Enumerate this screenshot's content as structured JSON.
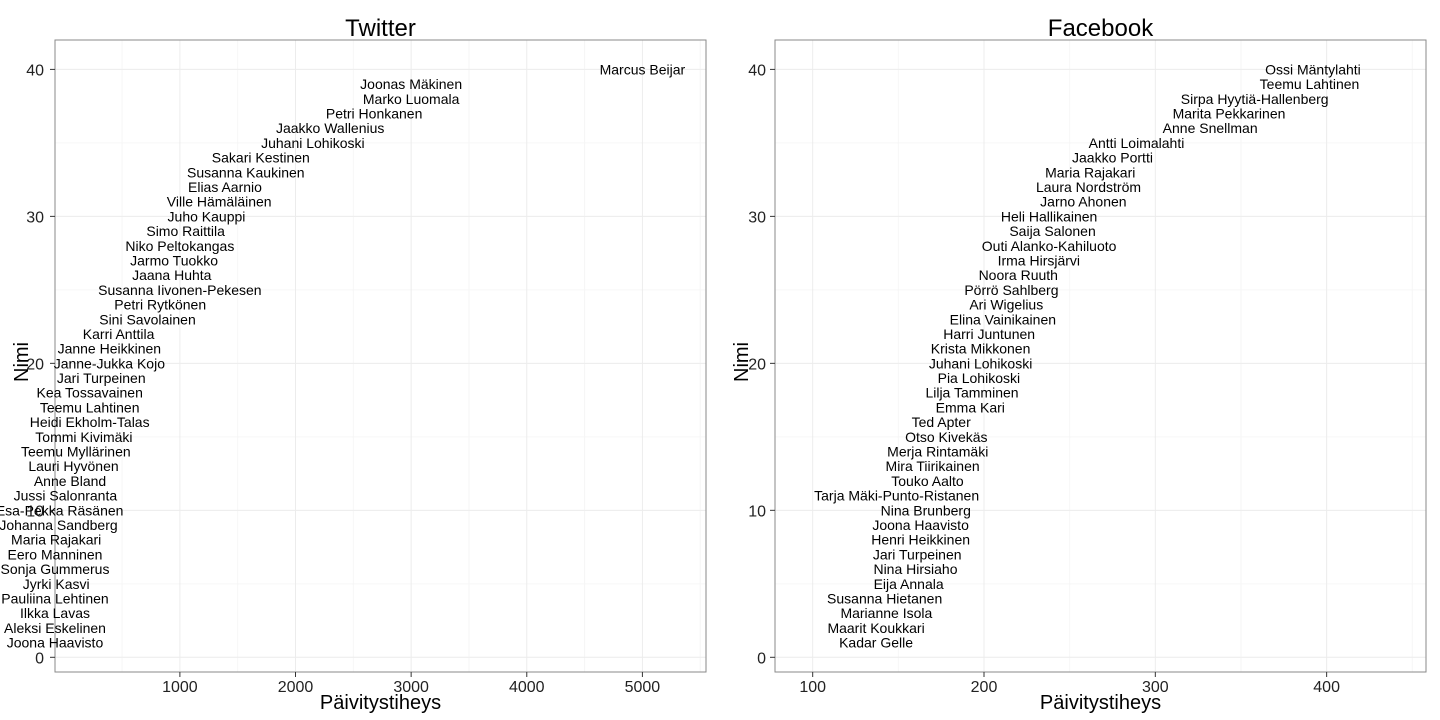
{
  "chart_data": [
    {
      "type": "scatter",
      "title": "Twitter",
      "xlabel": "Päivitystiheys",
      "ylabel": "Nimi",
      "xlim": [
        -80,
        5550
      ],
      "ylim": [
        -1,
        42
      ],
      "xticks": [
        1000,
        2000,
        3000,
        4000,
        5000
      ],
      "yticks": [
        0,
        10,
        20,
        30,
        40
      ],
      "grid": true,
      "legend": "none",
      "points": [
        {
          "x": 5000,
          "y": 40,
          "label": "Marcus Beijar"
        },
        {
          "x": 3000,
          "y": 39,
          "label": "Joonas Mäkinen"
        },
        {
          "x": 3000,
          "y": 38,
          "label": "Marko Luomala"
        },
        {
          "x": 2680,
          "y": 37,
          "label": "Petri Honkanen"
        },
        {
          "x": 2300,
          "y": 36,
          "label": "Jaakko Wallenius"
        },
        {
          "x": 2150,
          "y": 35,
          "label": "Juhani Lohikoski"
        },
        {
          "x": 1700,
          "y": 34,
          "label": "Sakari Kestinen"
        },
        {
          "x": 1570,
          "y": 33,
          "label": "Susanna Kaukinen"
        },
        {
          "x": 1390,
          "y": 32,
          "label": "Elias Aarnio"
        },
        {
          "x": 1340,
          "y": 31,
          "label": "Ville Hämäläinen"
        },
        {
          "x": 1230,
          "y": 30,
          "label": "Juho Kauppi"
        },
        {
          "x": 1050,
          "y": 29,
          "label": "Simo Raittila"
        },
        {
          "x": 1000,
          "y": 28,
          "label": "Niko Peltokangas"
        },
        {
          "x": 950,
          "y": 27,
          "label": "Jarmo Tuokko"
        },
        {
          "x": 930,
          "y": 26,
          "label": "Jaana Huhta"
        },
        {
          "x": 1000,
          "y": 25,
          "label": "Susanna Iivonen-Pekesen"
        },
        {
          "x": 830,
          "y": 24,
          "label": "Petri Rytkönen"
        },
        {
          "x": 720,
          "y": 23,
          "label": "Sini Savolainen"
        },
        {
          "x": 470,
          "y": 22,
          "label": "Karri Anttila"
        },
        {
          "x": 390,
          "y": 21,
          "label": "Janne Heikkinen"
        },
        {
          "x": 390,
          "y": 20,
          "label": "Janne-Jukka Kojo"
        },
        {
          "x": 320,
          "y": 19,
          "label": "Jari Turpeinen"
        },
        {
          "x": 220,
          "y": 18,
          "label": "Kea Tossavainen"
        },
        {
          "x": 220,
          "y": 17,
          "label": "Teemu Lahtinen"
        },
        {
          "x": 220,
          "y": 16,
          "label": "Heidi Ekholm-Talas"
        },
        {
          "x": 170,
          "y": 15,
          "label": "Tommi Kivimäki"
        },
        {
          "x": 100,
          "y": 14,
          "label": "Teemu Myllärinen"
        },
        {
          "x": 80,
          "y": 13,
          "label": "Lauri Hyvönen"
        },
        {
          "x": 50,
          "y": 12,
          "label": "Anne Bland"
        },
        {
          "x": 10,
          "y": 11,
          "label": "Jussi Salonranta"
        },
        {
          "x": -40,
          "y": 10,
          "label": "Esa-Pekka Räsänen"
        },
        {
          "x": -50,
          "y": 9,
          "label": "Johanna Sandberg"
        },
        {
          "x": -70,
          "y": 8,
          "label": "Maria Rajakari"
        },
        {
          "x": -80,
          "y": 7,
          "label": "Eero Manninen"
        },
        {
          "x": -80,
          "y": 6,
          "label": "Sonja Gummerus"
        },
        {
          "x": -70,
          "y": 5,
          "label": "Jyrki Kasvi"
        },
        {
          "x": -80,
          "y": 4,
          "label": "Pauliina Lehtinen"
        },
        {
          "x": -80,
          "y": 3,
          "label": "Ilkka Lavas"
        },
        {
          "x": -80,
          "y": 2,
          "label": "Aleksi Eskelinen"
        },
        {
          "x": -80,
          "y": 1,
          "label": "Joona Haavisto"
        }
      ]
    },
    {
      "type": "scatter",
      "title": "Facebook",
      "xlabel": "Päivitystiheys",
      "ylabel": "Nimi",
      "xlim": [
        78,
        458
      ],
      "ylim": [
        -1,
        42
      ],
      "xticks": [
        100,
        200,
        300,
        400
      ],
      "yticks": [
        0,
        10,
        20,
        30,
        40
      ],
      "grid": true,
      "legend": "none",
      "points": [
        {
          "x": 392,
          "y": 40,
          "label": "Ossi Mäntylahti"
        },
        {
          "x": 390,
          "y": 39,
          "label": "Teemu Lahtinen"
        },
        {
          "x": 358,
          "y": 38,
          "label": "Sirpa Hyytiä-Hallenberg"
        },
        {
          "x": 343,
          "y": 37,
          "label": "Marita Pekkarinen"
        },
        {
          "x": 332,
          "y": 36,
          "label": "Anne Snellman"
        },
        {
          "x": 289,
          "y": 35,
          "label": "Antti Loimalahti"
        },
        {
          "x": 275,
          "y": 34,
          "label": "Jaakko Portti"
        },
        {
          "x": 262,
          "y": 33,
          "label": "Maria Rajakari"
        },
        {
          "x": 261,
          "y": 32,
          "label": "Laura Nordström"
        },
        {
          "x": 258,
          "y": 31,
          "label": "Jarno Ahonen"
        },
        {
          "x": 238,
          "y": 30,
          "label": "Heli Hallikainen"
        },
        {
          "x": 240,
          "y": 29,
          "label": "Saija Salonen"
        },
        {
          "x": 238,
          "y": 28,
          "label": "Outi Alanko-Kahiluoto"
        },
        {
          "x": 232,
          "y": 27,
          "label": "Irma Hirsjärvi"
        },
        {
          "x": 220,
          "y": 26,
          "label": "Noora Ruuth"
        },
        {
          "x": 216,
          "y": 25,
          "label": "Pörrö Sahlberg"
        },
        {
          "x": 213,
          "y": 24,
          "label": "Ari Wigelius"
        },
        {
          "x": 211,
          "y": 23,
          "label": "Elina Vainikainen"
        },
        {
          "x": 203,
          "y": 22,
          "label": "Harri Juntunen"
        },
        {
          "x": 198,
          "y": 21,
          "label": "Krista Mikkonen"
        },
        {
          "x": 198,
          "y": 20,
          "label": "Juhani Lohikoski"
        },
        {
          "x": 197,
          "y": 19,
          "label": "Pia Lohikoski"
        },
        {
          "x": 193,
          "y": 18,
          "label": "Lilja Tamminen"
        },
        {
          "x": 192,
          "y": 17,
          "label": "Emma Kari"
        },
        {
          "x": 175,
          "y": 16,
          "label": "Ted Apter"
        },
        {
          "x": 178,
          "y": 15,
          "label": "Otso Kivekäs"
        },
        {
          "x": 173,
          "y": 14,
          "label": "Merja Rintamäki"
        },
        {
          "x": 170,
          "y": 13,
          "label": "Mira Tiirikainen"
        },
        {
          "x": 167,
          "y": 12,
          "label": "Touko Aalto"
        },
        {
          "x": 149,
          "y": 11,
          "label": "Tarja Mäki-Punto-Ristanen"
        },
        {
          "x": 166,
          "y": 10,
          "label": "Nina Brunberg"
        },
        {
          "x": 163,
          "y": 9,
          "label": "Joona Haavisto"
        },
        {
          "x": 163,
          "y": 8,
          "label": "Henri Heikkinen"
        },
        {
          "x": 161,
          "y": 7,
          "label": "Jari Turpeinen"
        },
        {
          "x": 160,
          "y": 6,
          "label": "Nina Hirsiaho"
        },
        {
          "x": 156,
          "y": 5,
          "label": "Eija Annala"
        },
        {
          "x": 142,
          "y": 4,
          "label": "Susanna Hietanen"
        },
        {
          "x": 143,
          "y": 3,
          "label": "Marianne Isola"
        },
        {
          "x": 137,
          "y": 2,
          "label": "Maarit Koukkari"
        },
        {
          "x": 137,
          "y": 1,
          "label": "Kadar Gelle"
        }
      ]
    }
  ]
}
